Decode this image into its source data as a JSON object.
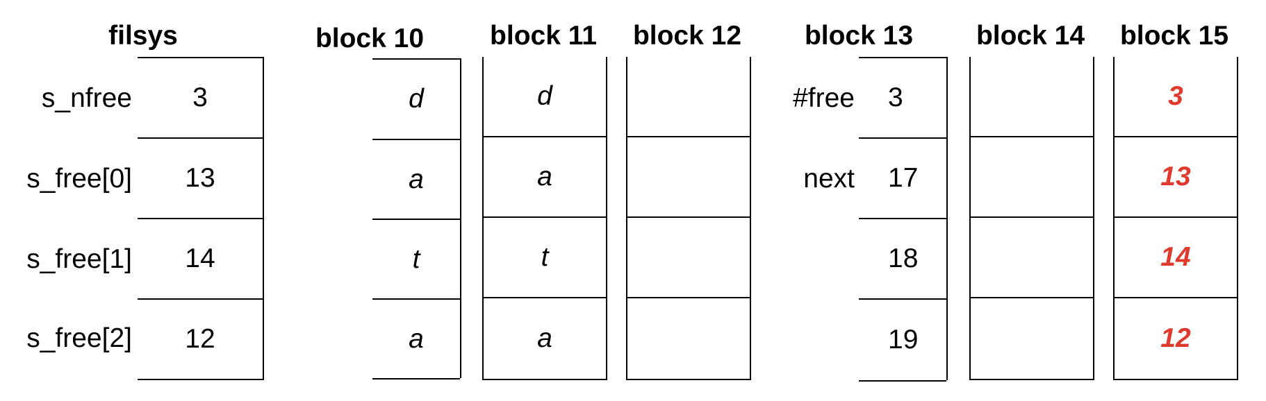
{
  "colors": {
    "line": "#000000",
    "text": "#000000",
    "highlight": "#e03a2f"
  },
  "filsys": {
    "title": "filsys",
    "labels": [
      "s_nfree",
      "s_free[0]",
      "s_free[1]",
      "s_free[2]"
    ],
    "values": [
      "3",
      "13",
      "14",
      "12"
    ]
  },
  "block10": {
    "title": "block 10",
    "cells": [
      "d",
      "a",
      "t",
      "a"
    ]
  },
  "block11": {
    "title": "block 11",
    "cells": [
      "d",
      "a",
      "t",
      "a"
    ]
  },
  "block12": {
    "title": "block 12",
    "cells": [
      "",
      "",
      "",
      ""
    ]
  },
  "block13": {
    "title": "block 13",
    "labels": [
      "#free",
      "next",
      "",
      ""
    ],
    "cells": [
      "3",
      "17",
      "18",
      "19"
    ]
  },
  "block14": {
    "title": "block 14",
    "cells": [
      "",
      "",
      "",
      ""
    ]
  },
  "block15": {
    "title": "block 15",
    "cells": [
      "3",
      "13",
      "14",
      "12"
    ]
  }
}
